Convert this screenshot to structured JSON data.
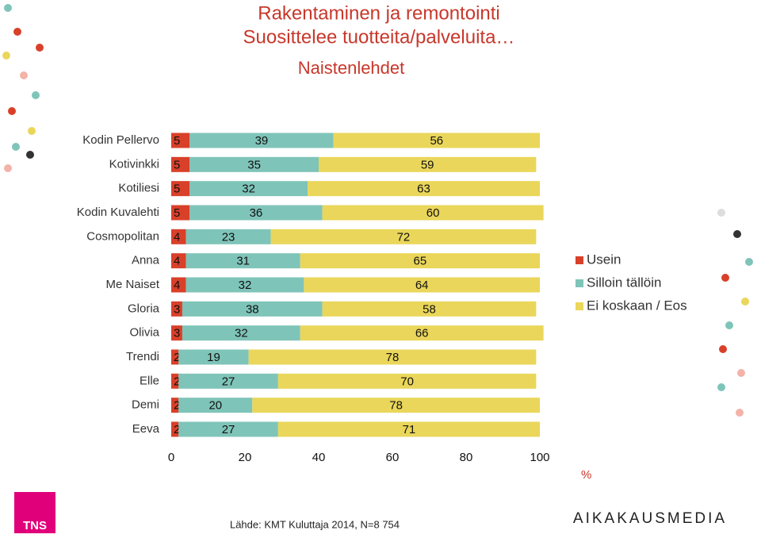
{
  "chart_data": {
    "type": "stacked-bar-horizontal",
    "title": "Rakentaminen ja remontointi",
    "subtitle": "Suosittelee tuotteita/palveluita…",
    "subtitle2": "Naistenlehdet",
    "categories": [
      "Kodin Pellervo",
      "Kotivinkki",
      "Kotiliesi",
      "Kodin Kuvalehti",
      "Cosmopolitan",
      "Anna",
      "Me Naiset",
      "Gloria",
      "Olivia",
      "Trendi",
      "Elle",
      "Demi",
      "Eeva"
    ],
    "series": [
      {
        "name": "Usein",
        "color": "#d9402a",
        "values": [
          5,
          5,
          5,
          5,
          4,
          4,
          4,
          3,
          3,
          2,
          2,
          2,
          2
        ]
      },
      {
        "name": "Silloin tällöin",
        "color": "#7fc4b9",
        "values": [
          39,
          35,
          32,
          36,
          23,
          31,
          32,
          38,
          32,
          19,
          27,
          20,
          27
        ]
      },
      {
        "name": "Ei koskaan / Eos",
        "color": "#ead65a",
        "values": [
          56,
          59,
          63,
          60,
          72,
          65,
          64,
          58,
          66,
          78,
          70,
          78,
          71
        ]
      }
    ],
    "xlim": [
      0,
      100
    ],
    "xticks": [
      0,
      20,
      40,
      60,
      80,
      100
    ],
    "x_unit": "%",
    "source": "Lähde: KMT Kuluttaja 2014, N=8 754"
  },
  "logos": [
    "TNS",
    "AIKAKAUSMEDIA"
  ]
}
